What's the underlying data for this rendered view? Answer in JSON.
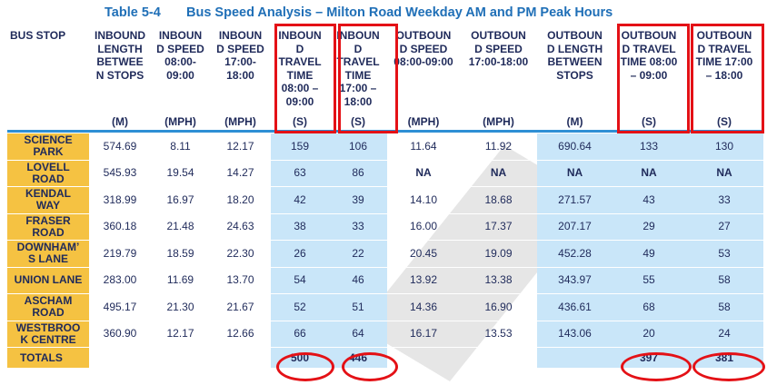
{
  "title": {
    "number": "Table 5-4",
    "text": "Bus Speed Analysis – Milton Road Weekday AM and PM Peak Hours"
  },
  "columns": [
    {
      "header": "BUS STOP",
      "unit": ""
    },
    {
      "header": "INBOUND LENGTH BETWEEN STOPS",
      "unit": "(M)"
    },
    {
      "header": "INBOUND SPEED 08:00-09:00",
      "unit": "(MPH)"
    },
    {
      "header": "INBOUND SPEED 17:00-18:00",
      "unit": "(MPH)"
    },
    {
      "header": "INBOUND TRAVEL TIME 08:00 – 09:00",
      "unit": "(S)"
    },
    {
      "header": "INBOUND TRAVEL TIME 17:00 – 18:00",
      "unit": "(S)"
    },
    {
      "header": "OUTBOUND SPEED 08:00-09:00",
      "unit": "(MPH)"
    },
    {
      "header": "OUTBOUND SPEED 17:00-18:00",
      "unit": "(MPH)"
    },
    {
      "header": "OUTBOUND LENGTH BETWEEN STOPS",
      "unit": "(M)"
    },
    {
      "header": "OUTBOUND TRAVEL TIME 08:00 – 09:00",
      "unit": "(S)"
    },
    {
      "header": "OUTBOUND TRAVEL TIME 17:00 – 18:00",
      "unit": "(S)"
    }
  ],
  "header_display": [
    "BUS STOP",
    "INBOUND<br>LENGTH<br>BETWEE<br>N STOPS",
    "INBOUN<br>D SPEED<br>08:00-<br>09:00",
    "INBOUN<br>D SPEED<br>17:00-<br>18:00",
    "INBOUN<br>D<br>TRAVEL<br>TIME<br>08:00 –<br>09:00",
    "INBOUN<br>D<br>TRAVEL<br>TIME<br>17:00 –<br>18:00",
    "OUTBOUN<br>D SPEED<br>08:00-09:00",
    "OUTBOUN<br>D SPEED<br>17:00-18:00",
    "OUTBOUN<br>D LENGTH<br>BETWEEN<br>STOPS",
    "OUTBOUN<br>D TRAVEL<br>TIME 08:00<br>– 09:00",
    "OUTBOUN<br>D TRAVEL<br>TIME 17:00<br>– 18:00"
  ],
  "rows": [
    {
      "stop": "SCIENCE PARK",
      "stop_display": "SCIENCE<br>PARK",
      "values": [
        "574.69",
        "8.11",
        "12.17",
        "159",
        "106",
        "11.64",
        "11.92",
        "690.64",
        "133",
        "130"
      ]
    },
    {
      "stop": "LOVELL ROAD",
      "stop_display": "LOVELL<br>ROAD",
      "values": [
        "545.93",
        "19.54",
        "14.27",
        "63",
        "86",
        "NA",
        "NA",
        "NA",
        "NA",
        "NA"
      ]
    },
    {
      "stop": "KENDAL WAY",
      "stop_display": "KENDAL<br>WAY",
      "values": [
        "318.99",
        "16.97",
        "18.20",
        "42",
        "39",
        "14.10",
        "18.68",
        "271.57",
        "43",
        "33"
      ]
    },
    {
      "stop": "FRASER ROAD",
      "stop_display": "FRASER<br>ROAD",
      "values": [
        "360.18",
        "21.48",
        "24.63",
        "38",
        "33",
        "16.00",
        "17.37",
        "207.17",
        "29",
        "27"
      ]
    },
    {
      "stop": "DOWNHAM'S LANE",
      "stop_display": "DOWNHAM’<br>S LANE",
      "values": [
        "219.79",
        "18.59",
        "22.30",
        "26",
        "22",
        "20.45",
        "19.09",
        "452.28",
        "49",
        "53"
      ]
    },
    {
      "stop": "UNION LANE",
      "stop_display": "UNION LANE",
      "values": [
        "283.00",
        "11.69",
        "13.70",
        "54",
        "46",
        "13.92",
        "13.38",
        "343.97",
        "55",
        "58"
      ]
    },
    {
      "stop": "ASCHAM ROAD",
      "stop_display": "ASCHAM<br>ROAD",
      "values": [
        "495.17",
        "21.30",
        "21.67",
        "52",
        "51",
        "14.36",
        "16.90",
        "436.61",
        "68",
        "58"
      ]
    },
    {
      "stop": "WESTBROOK CENTRE",
      "stop_display": "WESTBROO<br>K CENTRE",
      "values": [
        "360.90",
        "12.17",
        "12.66",
        "66",
        "64",
        "16.17",
        "13.53",
        "143.06",
        "20",
        "24"
      ]
    }
  ],
  "totals": {
    "label": "TOTALS",
    "values": [
      "",
      "",
      "",
      "500",
      "446",
      "",
      "",
      "",
      "397",
      "381"
    ]
  },
  "colors": {
    "stop_fill": "#f5c242",
    "travel_fill": "#c9e6f9",
    "highlight": "#e41116",
    "title": "#1f6fb7",
    "rule": "#2e8fd5"
  }
}
